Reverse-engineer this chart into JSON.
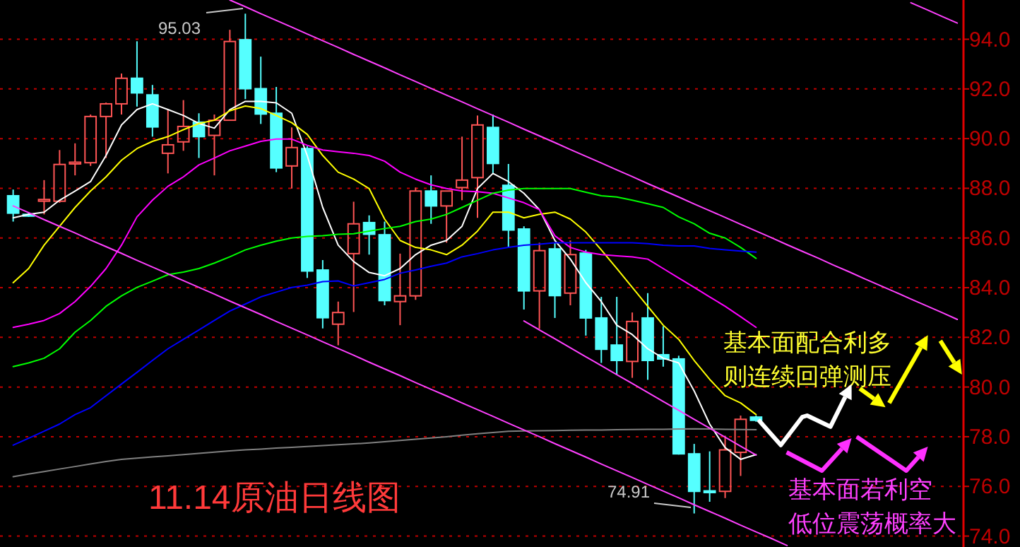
{
  "chart_data": {
    "type": "candlestick",
    "title": "11.14原油日线图",
    "annotations": [
      "95.03",
      "74.91",
      "基本面配合利多",
      "则连续回弹测压",
      "基本面若利空",
      "低位震荡概率大"
    ],
    "categories": [
      null,
      null,
      null,
      null,
      null,
      null,
      null,
      null,
      null,
      null,
      null,
      null,
      null,
      null,
      null,
      null,
      null,
      null,
      null,
      null,
      null,
      null,
      null,
      null,
      null,
      null,
      null,
      null,
      null,
      null,
      null,
      null,
      null,
      null,
      null,
      null,
      null,
      null,
      null,
      null,
      null,
      null,
      null,
      null,
      null,
      null,
      null,
      null,
      null,
      null,
      null,
      null,
      null,
      null,
      null,
      null,
      null,
      null,
      null,
      null,
      null,
      null
    ],
    "ohlc": [
      [
        87.7,
        87.95,
        86.66,
        87.0
      ],
      [
        86.95,
        87.0,
        86.85,
        86.9
      ],
      [
        87.5,
        88.33,
        86.95,
        87.55
      ],
      [
        87.48,
        89.54,
        87.42,
        88.96
      ],
      [
        89.0,
        89.81,
        88.52,
        89.05
      ],
      [
        89.03,
        90.97,
        88.9,
        90.89
      ],
      [
        90.89,
        91.45,
        89.22,
        91.4
      ],
      [
        91.4,
        92.62,
        90.97,
        92.43
      ],
      [
        92.43,
        93.92,
        91.29,
        91.84
      ],
      [
        91.76,
        92.16,
        90.08,
        90.47
      ],
      [
        89.41,
        91.17,
        88.6,
        89.75
      ],
      [
        89.87,
        91.55,
        89.51,
        90.49
      ],
      [
        90.66,
        91.02,
        89.22,
        90.08
      ],
      [
        90.13,
        90.97,
        88.52,
        90.74
      ],
      [
        90.74,
        94.38,
        90.74,
        93.91
      ],
      [
        93.98,
        95.03,
        91.59,
        92.01
      ],
      [
        92.01,
        93.3,
        90.59,
        90.99
      ],
      [
        91.02,
        92.08,
        88.65,
        88.82
      ],
      [
        88.9,
        90.45,
        87.99,
        89.64
      ],
      [
        89.6,
        89.7,
        84.39,
        84.67
      ],
      [
        84.71,
        85.11,
        82.36,
        82.79
      ],
      [
        82.53,
        83.44,
        81.68,
        83.0
      ],
      [
        85.37,
        87.46,
        83.02,
        86.57
      ],
      [
        86.62,
        86.91,
        85.33,
        86.15
      ],
      [
        86.13,
        86.66,
        83.29,
        83.48
      ],
      [
        83.44,
        85.37,
        82.49,
        83.67
      ],
      [
        83.67,
        88.03,
        83.51,
        87.89
      ],
      [
        87.89,
        88.52,
        86.57,
        87.29
      ],
      [
        87.29,
        87.89,
        85.81,
        87.89
      ],
      [
        88.03,
        90.08,
        87.52,
        88.33
      ],
      [
        88.43,
        90.93,
        86.81,
        90.55
      ],
      [
        90.45,
        90.97,
        88.56,
        89.0
      ],
      [
        88.12,
        88.98,
        85.62,
        86.32
      ],
      [
        86.36,
        86.47,
        83.12,
        83.87
      ],
      [
        83.87,
        85.81,
        82.34,
        85.49
      ],
      [
        85.56,
        85.81,
        82.78,
        83.68
      ],
      [
        83.78,
        85.9,
        83.29,
        85.33
      ],
      [
        85.39,
        85.52,
        82.07,
        82.78
      ],
      [
        82.78,
        83.63,
        80.97,
        81.52
      ],
      [
        81.69,
        83.63,
        80.5,
        81.07
      ],
      [
        81.03,
        83.0,
        80.37,
        82.64
      ],
      [
        82.78,
        83.78,
        80.29,
        81.07
      ],
      [
        81.3,
        82.45,
        80.82,
        81.13
      ],
      [
        81.13,
        81.26,
        77.28,
        77.31
      ],
      [
        77.31,
        77.71,
        74.91,
        75.8
      ],
      [
        75.82,
        77.41,
        75.38,
        75.78
      ],
      [
        75.8,
        78.04,
        75.53,
        77.47
      ],
      [
        77.37,
        78.85,
        76.42,
        78.7
      ],
      [
        78.79,
        78.85,
        78.6,
        78.66
      ],
      null,
      null,
      null,
      null,
      null,
      null,
      null,
      null,
      null,
      null,
      null,
      null,
      null
    ],
    "colors": [
      "#55ffff",
      "#55ffff",
      "#ff5555",
      "#ff5555",
      "#ff5555",
      "#ff5555",
      "#ff5555",
      "#ff5555",
      "#55ffff",
      "#55ffff",
      "#ff5555",
      "#ff5555",
      "#55ffff",
      "#ff5555",
      "#ff5555",
      "#55ffff",
      "#55ffff",
      "#55ffff",
      "#ff5555",
      "#55ffff",
      "#55ffff",
      "#ff5555",
      "#ff5555",
      "#55ffff",
      "#55ffff",
      "#ff5555",
      "#ff5555",
      "#55ffff",
      "#ff5555",
      "#ff5555",
      "#ff5555",
      "#55ffff",
      "#55ffff",
      "#55ffff",
      "#ff5555",
      "#55ffff",
      "#ff5555",
      "#55ffff",
      "#55ffff",
      "#55ffff",
      "#ff5555",
      "#55ffff",
      "#55ffff",
      "#55ffff",
      "#55ffff",
      "#55ffff",
      "#ff5555",
      "#ff5555",
      "#55ffff",
      null,
      null,
      null,
      null,
      null,
      null,
      null,
      null,
      null,
      null,
      null,
      null,
      null
    ],
    "series": [
      {
        "type": "line",
        "color": "#ffffff",
        "values": [
          86.81,
          86.95,
          87.04,
          87.52,
          87.89,
          88.27,
          89.32,
          90.55,
          91.17,
          91.4,
          91.17,
          90.93,
          90.61,
          90.42,
          91.17,
          91.5,
          91.5,
          91.44,
          91.02,
          89.32,
          87.23,
          85.71,
          85.05,
          84.61,
          84.48,
          84.77,
          85.33,
          85.71,
          85.9,
          86.47,
          87.99,
          88.6,
          88.27,
          87.8,
          87.14,
          85.9,
          85.15,
          84.2,
          83.44,
          82.49,
          82.11,
          81.54,
          81.16,
          80.97,
          79.84,
          78.51,
          77.56,
          77.09,
          77.28,
          null,
          null,
          null,
          null,
          null,
          null,
          null,
          null,
          null,
          null,
          null,
          null,
          null
        ]
      },
      {
        "type": "line",
        "color": "#ffff00",
        "values": [
          84.2,
          84.77,
          85.71,
          86.47,
          87.23,
          87.89,
          88.46,
          89.13,
          89.6,
          89.89,
          90.08,
          90.36,
          90.61,
          90.74,
          91.12,
          91.31,
          91.21,
          90.93,
          90.64,
          90.17,
          89.32,
          88.65,
          88.37,
          87.99,
          86.76,
          85.9,
          85.62,
          85.52,
          85.33,
          85.71,
          86.28,
          87.04,
          87.04,
          86.81,
          86.95,
          87.04,
          86.76,
          86.24,
          85.52,
          84.77,
          84.01,
          83.25,
          82.49,
          81.92,
          81.07,
          80.31,
          79.65,
          79.36,
          78.89,
          null,
          null,
          null,
          null,
          null,
          null,
          null,
          null,
          null,
          null,
          null,
          null,
          null
        ]
      },
      {
        "type": "line",
        "color": "#ff00ff",
        "values": [
          82.4,
          82.53,
          82.68,
          82.96,
          83.44,
          84.05,
          84.77,
          85.71,
          86.85,
          87.52,
          88.08,
          88.46,
          88.94,
          89.22,
          89.51,
          89.7,
          89.89,
          89.98,
          89.98,
          89.73,
          89.54,
          89.47,
          89.41,
          89.32,
          89.09,
          88.65,
          88.37,
          88.14,
          87.99,
          87.89,
          87.86,
          87.8,
          87.61,
          87.42,
          87.14,
          86.09,
          85.62,
          85.43,
          85.33,
          85.28,
          85.24,
          85.15,
          84.77,
          84.39,
          84.01,
          83.63,
          83.25,
          82.83,
          82.4,
          null,
          null,
          null,
          null,
          null,
          null,
          null,
          null,
          null,
          null,
          null,
          null,
          null
        ]
      },
      {
        "type": "line",
        "color": "#00ff00",
        "values": [
          80.82,
          80.97,
          81.16,
          81.54,
          82.21,
          82.68,
          83.25,
          83.67,
          84.01,
          84.26,
          84.52,
          84.63,
          84.77,
          84.99,
          85.24,
          85.52,
          85.71,
          85.87,
          86.0,
          86.06,
          86.09,
          86.15,
          86.17,
          86.28,
          86.38,
          86.47,
          86.66,
          86.76,
          86.95,
          87.23,
          87.52,
          87.8,
          87.93,
          87.99,
          87.99,
          87.99,
          87.99,
          87.84,
          87.7,
          87.65,
          87.52,
          87.38,
          87.23,
          86.85,
          86.57,
          86.19,
          86.0,
          85.62,
          85.18,
          null,
          null,
          null,
          null,
          null,
          null,
          null,
          null,
          null,
          null,
          null,
          null,
          null
        ]
      },
      {
        "type": "line",
        "color": "#0000ff",
        "values": [
          77.66,
          77.94,
          78.22,
          78.51,
          78.89,
          79.17,
          79.65,
          80.12,
          80.59,
          81.07,
          81.54,
          81.92,
          82.3,
          82.68,
          83.06,
          83.34,
          83.63,
          83.82,
          84.01,
          84.1,
          84.24,
          84.27,
          84.07,
          84.2,
          84.33,
          84.58,
          84.71,
          84.86,
          84.99,
          85.24,
          85.37,
          85.52,
          85.62,
          85.71,
          85.75,
          85.81,
          85.81,
          85.81,
          85.81,
          85.81,
          85.81,
          85.77,
          85.71,
          85.68,
          85.68,
          85.58,
          85.52,
          85.47,
          85.43,
          null,
          null,
          null,
          null,
          null,
          null,
          null,
          null,
          null,
          null,
          null,
          null,
          null
        ]
      },
      {
        "type": "line",
        "color": "#808080",
        "values": [
          76.39,
          76.5,
          76.6,
          76.7,
          76.8,
          76.9,
          77.0,
          77.09,
          77.14,
          77.19,
          77.23,
          77.28,
          77.33,
          77.38,
          77.43,
          77.47,
          77.5,
          77.54,
          77.57,
          77.61,
          77.64,
          77.68,
          77.71,
          77.75,
          77.8,
          77.85,
          77.9,
          77.95,
          78.0,
          78.06,
          78.12,
          78.17,
          78.22,
          78.23,
          78.24,
          78.25,
          78.26,
          78.27,
          78.27,
          78.28,
          78.29,
          78.3,
          78.3,
          78.31,
          78.32,
          78.31,
          78.3,
          78.29,
          78.28,
          null,
          null,
          null,
          null,
          null,
          null,
          null,
          null,
          null,
          null,
          null,
          null,
          null
        ]
      },
      {
        "type": "line",
        "color": "#ff40ff",
        "values": [
          null,
          null,
          null,
          null,
          null,
          null,
          null,
          null,
          null,
          null,
          null,
          null,
          null,
          null,
          95.58,
          95.31,
          95.03,
          94.76,
          94.49,
          94.21,
          93.94,
          93.67,
          93.39,
          93.12,
          92.85,
          92.57,
          92.3,
          92.02,
          91.75,
          91.48,
          91.2,
          90.93,
          90.66,
          90.38,
          90.11,
          89.84,
          89.56,
          89.29,
          89.02,
          88.74,
          88.47,
          88.19,
          87.92,
          87.65,
          87.37,
          87.1,
          86.83,
          86.55,
          86.28,
          86.01,
          85.73,
          85.46,
          85.19,
          84.91,
          84.64,
          84.36,
          84.09,
          83.82,
          83.54,
          83.27,
          83.0,
          82.72
        ]
      },
      {
        "type": "line",
        "color": "#ff40ff",
        "values": [
          87.29,
          87.02,
          86.74,
          86.47,
          86.2,
          85.92,
          85.65,
          85.38,
          85.1,
          84.83,
          84.56,
          84.28,
          84.01,
          83.74,
          83.46,
          83.19,
          82.92,
          82.64,
          82.37,
          82.1,
          81.82,
          81.55,
          81.28,
          81.0,
          80.73,
          80.46,
          80.18,
          79.91,
          79.64,
          79.36,
          79.09,
          78.82,
          78.54,
          78.27,
          78.0,
          77.72,
          77.45,
          77.18,
          76.9,
          76.63,
          76.36,
          76.08,
          75.81,
          75.54,
          75.26,
          74.99,
          74.72,
          74.44,
          74.17,
          73.9,
          73.62,
          null,
          null,
          null,
          null,
          null,
          null,
          null,
          null,
          null,
          null,
          null
        ]
      },
      {
        "type": "line",
        "color": "#ff40ff",
        "values": [
          null,
          null,
          null,
          null,
          null,
          null,
          null,
          null,
          null,
          null,
          null,
          null,
          null,
          null,
          null,
          null,
          null,
          null,
          null,
          null,
          null,
          null,
          null,
          null,
          null,
          null,
          null,
          null,
          null,
          null,
          null,
          null,
          null,
          82.66,
          82.3,
          81.94,
          81.58,
          81.22,
          80.86,
          80.5,
          80.14,
          79.78,
          79.42,
          79.06,
          78.7,
          78.34,
          77.98,
          77.62,
          77.26,
          null,
          null,
          null,
          null,
          null,
          null,
          null,
          null,
          null,
          null,
          null,
          null,
          null
        ]
      },
      {
        "type": "line",
        "color": "#ff40ff",
        "values": [
          null,
          null,
          null,
          null,
          null,
          null,
          null,
          null,
          null,
          null,
          null,
          null,
          null,
          null,
          null,
          null,
          null,
          null,
          null,
          null,
          null,
          null,
          null,
          null,
          null,
          null,
          null,
          null,
          null,
          null,
          null,
          null,
          null,
          null,
          null,
          null,
          null,
          null,
          null,
          null,
          null,
          null,
          null,
          null,
          null,
          null,
          null,
          null,
          null,
          null,
          null,
          null,
          null,
          null,
          null,
          null,
          null,
          null,
          95.47,
          95.2,
          94.92,
          94.65
        ]
      }
    ],
    "ylim": [
      73.56,
      95.58
    ],
    "yticks": [
      {
        "value": 74,
        "label": "74.0"
      },
      {
        "value": 76,
        "label": "76.0"
      },
      {
        "value": 78,
        "label": "78.0"
      },
      {
        "value": 80,
        "label": "80.0"
      },
      {
        "value": 82,
        "label": "82.0"
      },
      {
        "value": 84,
        "label": "84.0"
      },
      {
        "value": 86,
        "label": "86.0"
      },
      {
        "value": 88,
        "label": "88.0"
      },
      {
        "value": 90,
        "label": "90.0"
      },
      {
        "value": 92,
        "label": "92.0"
      },
      {
        "value": 94,
        "label": "94.0"
      }
    ],
    "grid": "y",
    "tick_labels": "y"
  }
}
